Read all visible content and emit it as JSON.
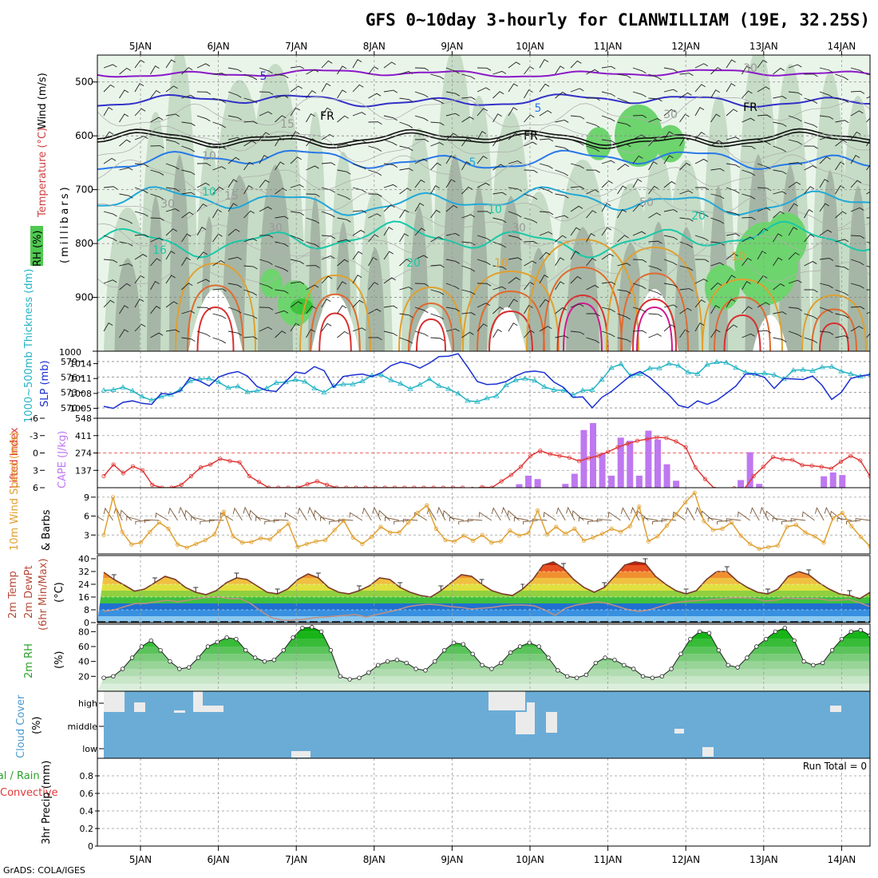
{
  "title": "GFS 0~10day 3-hourly for CLANWILLIAM (19E, 32.25S)",
  "credit": "GrADS: COLA/IGES",
  "colors": {
    "rh_light": "#eaf5ea",
    "rh_mid": "#c6dcc6",
    "rh_dark": "#a6b6a6",
    "rh_green": "#6ed46e",
    "rh_bright": "#38c638",
    "slp": "#1a2fd2",
    "thickness": "#24b4c4",
    "lifted": "#e03838",
    "cape": "#be78f0",
    "wind10": "#e0a030",
    "barb": "#7a5a3a",
    "cloud_bg": "#6bacd6",
    "cloud_gap": "#ebebeb",
    "rh2m_line": "#222222"
  },
  "chart_data": {
    "x_ticks": [
      "5JAN",
      "6JAN",
      "7JAN",
      "8JAN",
      "9JAN",
      "10JAN",
      "11JAN",
      "12JAN",
      "13JAN",
      "14JAN"
    ],
    "panels": [
      {
        "id": "upper-air",
        "type": "heatmap",
        "ylabels": [
          "Wind (m/s)",
          "Temperature (°C)",
          "RH (%)",
          "(millibars)"
        ],
        "yticks": [
          500,
          600,
          700,
          800,
          900,
          1000
        ],
        "contour_labels": [
          "5",
          "FR",
          "FR",
          "FR",
          "5",
          "5",
          "10",
          "10",
          "10",
          "15",
          "15",
          "16",
          "20",
          "20",
          "10",
          "10",
          "30",
          "30",
          "30",
          "30",
          "30",
          "50"
        ]
      },
      {
        "id": "slp-thickness",
        "type": "line",
        "ylabels": [
          "1000~500mb Thickness (dm)",
          "SLP (mb)"
        ],
        "left_ticks": [
          "579",
          "576",
          "573",
          "570"
        ],
        "right_ticks": [
          "1014",
          "1011",
          "1008",
          "1005"
        ],
        "series": [
          {
            "name": "SLP",
            "axis": "mb",
            "values": [
              1005.4,
              1005,
              1006.2,
              1006.5,
              1006,
              1005.8,
              1008,
              1007.8,
              1008.5,
              1011.2,
              1010.5,
              1009.5,
              1011.3,
              1012,
              1012.4,
              1011.5,
              1009.4,
              1008.6,
              1008.4,
              1010.4,
              1012.3,
              1012,
              1013.4,
              1012.6,
              1009.2,
              1011.4,
              1011.7,
              1011.9,
              1011.4,
              1012.2,
              1013.6,
              1014.3,
              1013.9,
              1013.1,
              1014.1,
              1015.4,
              1015.5,
              1016,
              1013.3,
              1010.4,
              1009.8,
              1009.9,
              1010.4,
              1011.5,
              1012.3,
              1012.5,
              1012.2,
              1010.3,
              1009.2,
              1007.2,
              1007.3,
              1005.1,
              1007.2,
              1008.4,
              1010,
              1011.6,
              1012.4,
              1011.2,
              1009.4,
              1007.7,
              1005.6,
              1005.1,
              1006.5,
              1005.8,
              1006.6,
              1008,
              1009.5,
              1011.9,
              1011.9,
              1011.2,
              1009,
              1011,
              1010.9,
              1010.8,
              1011.5,
              1009.6,
              1006.8,
              1008.2,
              1011,
              1011.5,
              1011.8
            ]
          },
          {
            "name": "1000~500mb Thickness",
            "axis": "dm",
            "values": [
              573.4,
              573.5,
              574,
              573.3,
              572.2,
              571.5,
              572.2,
              572.6,
              573.6,
              575.2,
              575.6,
              575.7,
              575,
              573.9,
              574.2,
              573.1,
              573.3,
              573.8,
              574.9,
              575,
              575.5,
              575.1,
              573.8,
              573,
              574.3,
              574.6,
              574.6,
              575.2,
              576.3,
              576.4,
              575.4,
              574.7,
              573.7,
              574.5,
              575.6,
              574.3,
              573.7,
              572.8,
              571.4,
              571.2,
              571.9,
              572.3,
              574.4,
              575.4,
              575.7,
              575.3,
              574.1,
              573.5,
              573.4,
              572.5,
              573.4,
              573.5,
              575.5,
              577.8,
              578.5,
              576.2,
              576.6,
              577.7,
              577.7,
              578.6,
              578.2,
              576.9,
              576.6,
              578.4,
              578.9,
              578.8,
              577.8,
              576.9,
              576.6,
              576.7,
              576.4,
              575.6,
              577.3,
              577.4,
              577.2,
              577.9,
              578,
              577.1,
              576.6,
              576.1,
              576.5
            ]
          }
        ]
      },
      {
        "id": "lifted-cape",
        "type": "bar",
        "ylabels": [
          "Lifted Index",
          "CAPE (J/kg)"
        ],
        "left_ticks": [
          "-6",
          "-3",
          "0",
          "3",
          "6"
        ],
        "right_ticks": [
          "548",
          "411",
          "274",
          "137"
        ],
        "series": [
          {
            "name": "Lifted Index",
            "type": "line",
            "range": [
              6,
              -6
            ],
            "values": [
              4,
              2,
              3.5,
              2.3,
              3,
              5.5,
              6,
              6,
              5.5,
              4,
              2.5,
              2,
              1,
              1.4,
              1.6,
              4,
              5,
              6,
              6,
              6,
              6,
              5.4,
              4.9,
              5.5,
              6,
              6,
              6,
              6,
              6,
              6,
              6,
              6,
              6,
              6,
              6,
              6,
              6,
              6,
              6.2,
              5.9,
              6,
              4.9,
              3.8,
              2.4,
              0.5,
              -0.4,
              0.2,
              0.5,
              0.8,
              1.4,
              0.9,
              0.5,
              -0.2,
              -1,
              -1.6,
              -2.1,
              -2.4,
              -2.7,
              -2.6,
              -2,
              -1,
              2.5,
              4.5,
              6.2,
              6.4,
              6.1,
              6.3,
              4,
              2.4,
              0.7,
              1.1,
              1.2,
              2.1,
              2.2,
              2.4,
              2.7,
              1.5,
              0.5,
              1.3,
              4
            ]
          },
          {
            "name": "CAPE",
            "type": "bar",
            "range": [
              0,
              548
            ],
            "values": [
              0,
              0,
              0,
              0,
              0,
              0,
              0,
              0,
              0,
              0,
              0,
              0,
              0,
              0,
              0,
              0,
              0,
              0,
              0,
              0,
              0,
              0,
              0,
              0,
              0,
              0,
              0,
              0,
              0,
              0,
              0,
              0,
              0,
              0,
              0,
              0,
              0,
              0,
              0,
              0,
              0,
              0,
              0,
              0,
              0,
              28,
              95,
              68,
              0,
              0,
              30,
              110,
              455,
              510,
              270,
              95,
              395,
              370,
              95,
              450,
              380,
              185,
              55,
              0,
              0,
              0,
              0,
              0,
              0,
              60,
              280,
              30,
              0,
              0,
              0,
              0,
              0,
              0,
              90,
              120,
              100,
              0,
              0,
              0
            ]
          }
        ]
      },
      {
        "id": "wind10m",
        "type": "line",
        "ylabels": [
          "10m Wind Speed (m/s)",
          "& Barbs"
        ],
        "left_ticks": [
          "9",
          "6",
          "3"
        ],
        "series": [
          {
            "name": "10m Wind",
            "values": [
              3,
              9,
              3.5,
              1.5,
              1.8,
              3.5,
              5,
              4,
              1.5,
              1,
              1.6,
              2.2,
              3.1,
              6.7,
              2.8,
              1.8,
              1.9,
              2.5,
              2.3,
              3.6,
              4.8,
              1.1,
              1.6,
              2,
              2.2,
              3.8,
              5.3,
              2.6,
              1.6,
              2.7,
              4.3,
              3.4,
              3.4,
              5,
              6.5,
              7.7,
              4,
              2.2,
              2,
              2.9,
              2.1,
              3,
              1.8,
              2,
              3.7,
              2.9,
              3.3,
              6.9,
              3.1,
              4.3,
              3.2,
              4,
              2.1,
              2.6,
              3.2,
              4,
              3.5,
              4.4,
              7.5,
              2,
              2.8,
              4.5,
              6.3,
              8.2,
              9.7,
              5.2,
              3.8,
              4,
              5,
              2.9,
              1.6,
              0.8,
              1.1,
              1.3,
              4.3,
              4.6,
              3.4,
              2.8,
              1.8,
              5.7,
              6.5,
              4.4,
              2.7,
              1.2
            ]
          }
        ]
      },
      {
        "id": "temp2m",
        "type": "area",
        "ylabels": [
          "2m Temp",
          "2m DewPt",
          "(6hr Min/Max)",
          "(°C)"
        ],
        "left_ticks": [
          "40",
          "32",
          "24",
          "16",
          "8",
          "0"
        ],
        "series": [
          {
            "name": "2m Temp",
            "values": [
              31.5,
              27,
              23.5,
              19.7,
              21,
              25,
              29,
              27,
              22,
              19,
              17.5,
              20,
              25,
              28,
              27,
              23,
              19,
              18,
              21,
              27,
              30.5,
              28,
              22,
              19,
              18,
              20,
              23,
              28,
              27,
              22,
              19,
              17,
              16,
              20,
              25,
              30,
              29,
              24,
              20,
              18,
              17,
              21,
              27,
              36,
              38,
              34,
              27,
              22,
              19,
              22,
              29,
              36,
              38,
              37,
              29,
              24,
              20,
              18,
              20,
              27,
              32,
              32,
              26,
              22,
              19,
              18,
              21,
              29,
              32,
              30,
              25,
              21,
              18,
              17,
              15,
              19
            ]
          },
          {
            "name": "2m DewPt",
            "values": [
              7,
              8,
              10,
              12,
              12,
              13,
              14,
              13,
              14,
              15,
              16,
              16,
              15,
              15,
              12,
              7,
              3,
              1.5,
              1.5,
              2,
              3,
              3.5,
              4,
              4.5,
              5,
              3.5,
              5,
              6.5,
              8,
              10,
              11,
              11.5,
              11,
              10,
              9.5,
              8.5,
              9,
              9.5,
              10.5,
              11,
              11,
              10.5,
              8,
              4.5,
              9,
              11,
              12,
              13,
              12,
              10,
              8,
              7,
              8,
              10,
              12,
              13,
              13.5,
              14,
              14.5,
              15,
              15.5,
              15.5,
              15,
              13.5,
              14,
              15.5,
              15,
              15,
              15,
              14,
              14,
              14.5,
              12.5,
              10
            ]
          }
        ]
      },
      {
        "id": "rh2m",
        "type": "area",
        "ylabels": [
          "2m RH",
          "(%)"
        ],
        "left_ticks": [
          "80",
          "60",
          "40",
          "20"
        ],
        "series": [
          {
            "name": "2m RH",
            "values": [
              18,
              20,
              30,
              45,
              60,
              68,
              55,
              40,
              30,
              32,
              45,
              60,
              66,
              72,
              70,
              55,
              45,
              40,
              42,
              55,
              72,
              85,
              86,
              80,
              55,
              20,
              16,
              18,
              25,
              35,
              40,
              42,
              38,
              30,
              28,
              40,
              55,
              65,
              63,
              50,
              35,
              30,
              38,
              52,
              60,
              65,
              60,
              45,
              28,
              20,
              18,
              22,
              38,
              45,
              42,
              35,
              30,
              20,
              18,
              20,
              30,
              50,
              70,
              80,
              78,
              55,
              35,
              32,
              45,
              60,
              70,
              80,
              85,
              68,
              40,
              35,
              38,
              55,
              70,
              80,
              82,
              75
            ]
          }
        ]
      },
      {
        "id": "cloud",
        "type": "heatmap",
        "ylabels": [
          "Cloud Cover",
          "(%)"
        ],
        "left_ticks": [
          "high",
          "middle",
          "low"
        ]
      },
      {
        "id": "precip",
        "type": "bar",
        "ylabels": [
          "Total / Rain",
          "Convective",
          "3hr Precip (mm)"
        ],
        "left_ticks": [
          "0.8",
          "0.6",
          "0.4",
          "0.2",
          "0"
        ],
        "run_total": "Run Total = 0",
        "values": []
      }
    ]
  }
}
